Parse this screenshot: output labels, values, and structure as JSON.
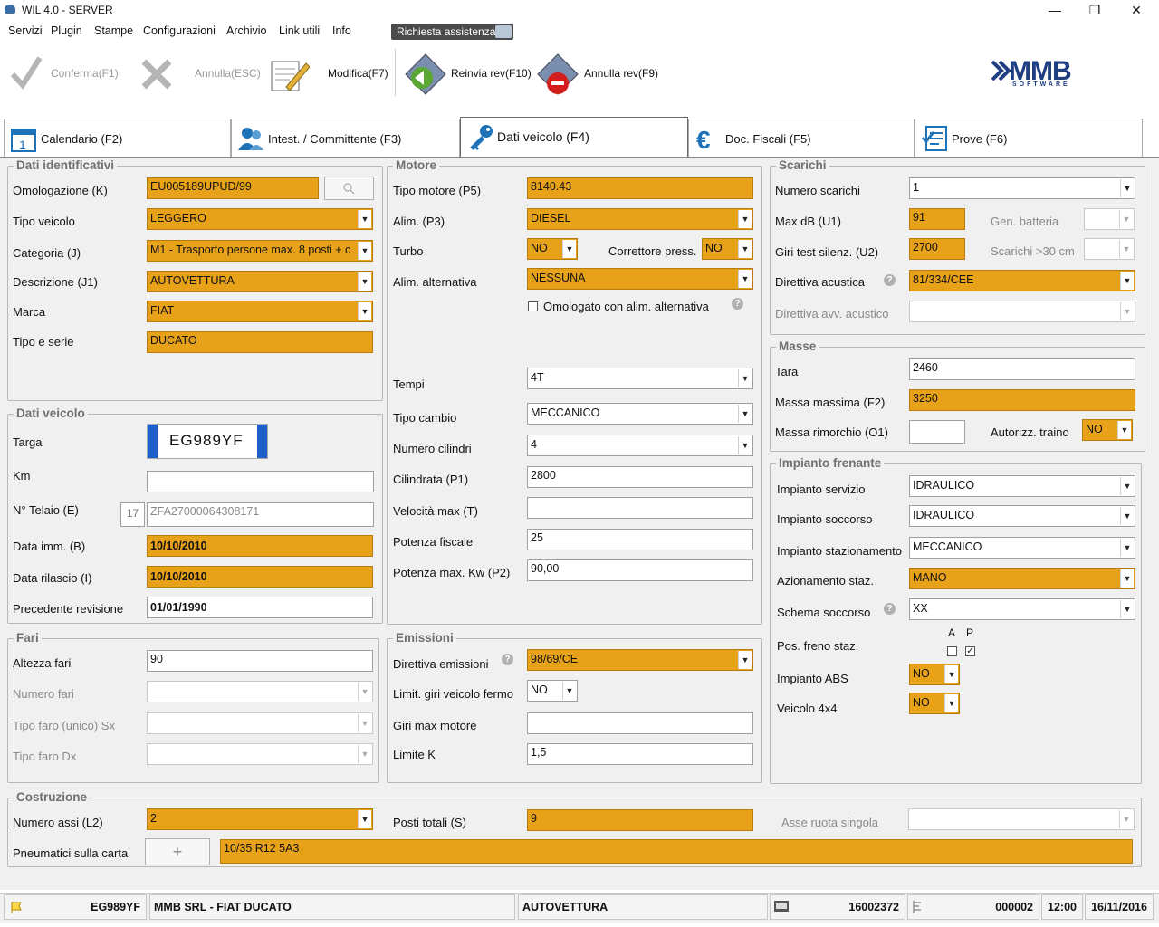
{
  "window": {
    "title": "WIL 4.0 - SERVER"
  },
  "menu": [
    "Servizi",
    "Plugin",
    "Stampe",
    "Configurazioni",
    "Archivio",
    "Link utili",
    "Info"
  ],
  "assist_label": "Richiesta assistenza",
  "toolbar": {
    "confirm": "Conferma(F1)",
    "cancel": "Annulla(ESC)",
    "modify": "Modifica(F7)",
    "resend": "Reinvia rev(F10)",
    "annul": "Annulla rev(F9)"
  },
  "logo": {
    "brand": "MMB",
    "sub": "SOFTWARE"
  },
  "tabs": [
    "Calendario (F2)",
    "Intest. / Committente (F3)",
    "Dati veicolo (F4)",
    "Doc. Fiscali (F5)",
    "Prove (F6)"
  ],
  "dati_identificativi": {
    "title": "Dati identificativi",
    "omologazione_label": "Omologazione (K)",
    "omologazione": "EU005189UPUD/99",
    "tipo_veicolo_label": "Tipo veicolo",
    "tipo_veicolo": "LEGGERO",
    "categoria_label": "Categoria (J)",
    "categoria": "M1 - Trasporto persone max. 8 posti + c",
    "descrizione_label": "Descrizione (J1)",
    "descrizione": "AUTOVETTURA",
    "marca_label": "Marca",
    "marca": "FIAT",
    "tipo_serie_label": "Tipo e serie",
    "tipo_serie": "DUCATO"
  },
  "dati_veicolo": {
    "title": "Dati veicolo",
    "targa_label": "Targa",
    "targa": "EG989YF",
    "km_label": "Km",
    "km": "",
    "telaio_label": "N° Telaio (E)",
    "telaio_len": "17",
    "telaio": "ZFA27000064308171",
    "data_imm_label": "Data imm. (B)",
    "data_imm": "10/10/2010",
    "data_ril_label": "Data rilascio (I)",
    "data_ril": "10/10/2010",
    "prec_rev_label": "Precedente revisione",
    "prec_rev": "01/01/1990"
  },
  "fari": {
    "title": "Fari",
    "altezza_label": "Altezza fari",
    "altezza": "90",
    "numero_label": "Numero fari",
    "tipo_sx_label": "Tipo faro (unico) Sx",
    "tipo_dx_label": "Tipo faro Dx"
  },
  "motore": {
    "title": "Motore",
    "tipo_label": "Tipo motore (P5)",
    "tipo": "8140.43",
    "alim_label": "Alim. (P3)",
    "alim": "DIESEL",
    "turbo_label": "Turbo",
    "turbo": "NO",
    "corr_label": "Correttore press.",
    "corr": "NO",
    "alim_alt_label": "Alim. alternativa",
    "alim_alt": "NESSUNA",
    "omol_alt_label": "Omologato con alim. alternativa",
    "tempi_label": "Tempi",
    "tempi": "4T",
    "cambio_label": "Tipo cambio",
    "cambio": "MECCANICO",
    "cilindri_label": "Numero cilindri",
    "cilindri": "4",
    "cilindrata_label": "Cilindrata (P1)",
    "cilindrata": "2800",
    "vel_label": "Velocità max (T)",
    "vel": "",
    "pot_fisc_label": "Potenza fiscale",
    "pot_fisc": "25",
    "pot_max_label": "Potenza max. Kw (P2)",
    "pot_max": "90,00"
  },
  "emissioni": {
    "title": "Emissioni",
    "direttiva_label": "Direttiva emissioni",
    "direttiva": "98/69/CE",
    "limit_label": "Limit. giri veicolo fermo",
    "limit": "NO",
    "giri_label": "Giri max motore",
    "giri": "",
    "k_label": "Limite K",
    "k": "1,5"
  },
  "scarichi": {
    "title": "Scarichi",
    "numero_label": "Numero scarichi",
    "numero": "1",
    "maxdb_label": "Max dB (U1)",
    "maxdb": "91",
    "gen_label": "Gen. batteria",
    "giri_label": "Giri test silenz. (U2)",
    "giri": "2700",
    "scar30_label": "Scarichi >30 cm",
    "dir_label": "Direttiva acustica",
    "dir": "81/334/CEE",
    "dir_avv_label": "Direttiva avv. acustico"
  },
  "masse": {
    "title": "Masse",
    "tara_label": "Tara",
    "tara": "2460",
    "massima_label": "Massa massima (F2)",
    "massima": "3250",
    "rimorchio_label": "Massa rimorchio (O1)",
    "rimorchio": "",
    "traino_label": "Autorizz. traino",
    "traino": "NO"
  },
  "frenante": {
    "title": "Impianto frenante",
    "servizio_label": "Impianto servizio",
    "servizio": "IDRAULICO",
    "soccorso_label": "Impianto soccorso",
    "soccorso": "IDRAULICO",
    "staz_label": "Impianto stazionamento",
    "staz": "MECCANICO",
    "az_label": "Azionamento staz.",
    "az": "MANO",
    "schema_label": "Schema soccorso",
    "schema": "XX",
    "pos_label": "Pos. freno staz.",
    "a": "A",
    "p": "P",
    "abs_label": "Impianto ABS",
    "abs": "NO",
    "x4_label": "Veicolo 4x4",
    "x4": "NO"
  },
  "costruzione": {
    "title": "Costruzione",
    "assi_label": "Numero assi (L2)",
    "assi": "2",
    "posti_label": "Posti totali (S)",
    "posti": "9",
    "asse_label": "Asse ruota singola",
    "pneu_label": "Pneumatici sulla carta",
    "pneu": "10/35 R12 5A3"
  },
  "status": {
    "targa": "EG989YF",
    "cliente": "MMB SRL - FIAT DUCATO",
    "tipo": "AUTOVETTURA",
    "codice": "16002372",
    "num": "000002",
    "ora": "12:00",
    "data": "16/11/2016"
  }
}
